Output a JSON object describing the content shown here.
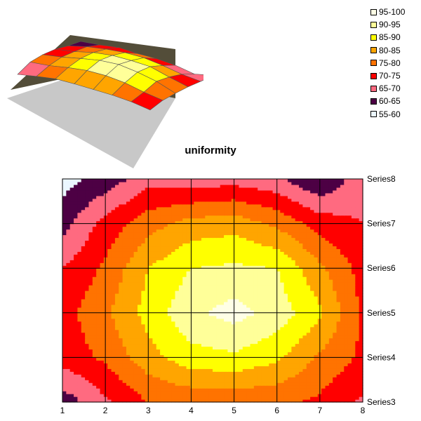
{
  "chart_data": {
    "type": "contour",
    "title": "uniformity",
    "x_ticks": [
      "1",
      "2",
      "3",
      "4",
      "5",
      "6",
      "7",
      "8"
    ],
    "y_series": [
      "Series3",
      "Series4",
      "Series5",
      "Series6",
      "Series7",
      "Series8"
    ],
    "legend_position": "top-right",
    "bands": [
      {
        "label": "95-100",
        "min": 95,
        "max": 100,
        "color": "#ffffe6"
      },
      {
        "label": "90-95",
        "min": 90,
        "max": 95,
        "color": "#ffff99"
      },
      {
        "label": "85-90",
        "min": 85,
        "max": 90,
        "color": "#ffff00"
      },
      {
        "label": "80-85",
        "min": 80,
        "max": 85,
        "color": "#ffa500"
      },
      {
        "label": "75-80",
        "min": 75,
        "max": 80,
        "color": "#ff7300"
      },
      {
        "label": "70-75",
        "min": 70,
        "max": 75,
        "color": "#ff0000"
      },
      {
        "label": "65-70",
        "min": 65,
        "max": 70,
        "color": "#ff6a80"
      },
      {
        "label": "60-65",
        "min": 60,
        "max": 65,
        "color": "#4d0044"
      },
      {
        "label": "55-60",
        "min": 55,
        "max": 60,
        "color": "#ebf7ff"
      }
    ],
    "below_range_color": "#000000",
    "surface_floor_color": "#c8c8c8",
    "surface_back_color": "#403a24",
    "values": [
      [
        62,
        69,
        75,
        76,
        76,
        76,
        74,
        69
      ],
      [
        72,
        76,
        83,
        88,
        89,
        86,
        79,
        74
      ],
      [
        73,
        79,
        87,
        94,
        97,
        93,
        86,
        74
      ],
      [
        70,
        76,
        85,
        90,
        91,
        90,
        81,
        73
      ],
      [
        63,
        72,
        78,
        82,
        83,
        79,
        73,
        70
      ],
      [
        58,
        62,
        68,
        67,
        68,
        66,
        60,
        68
      ]
    ]
  }
}
